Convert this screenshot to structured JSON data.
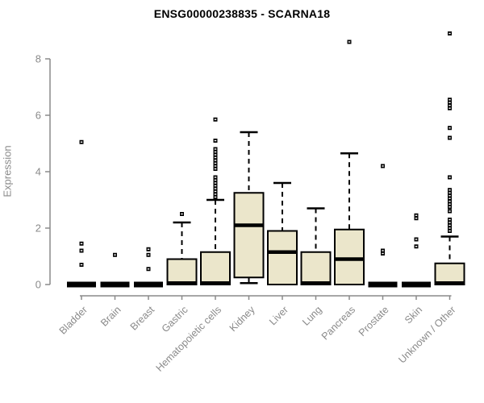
{
  "title": "ENSG00000238835 - SCARNA18",
  "chart_data": {
    "type": "boxplot",
    "title": "ENSG00000238835 - SCARNA18",
    "xlabel": "",
    "ylabel": "Expression",
    "ylim": [
      0,
      9.2
    ],
    "yticks": [
      0,
      2,
      4,
      6,
      8
    ],
    "grid": false,
    "legend": "none",
    "categories": [
      "Bladder",
      "Brain",
      "Breast",
      "Gastric",
      "Hematopoietic cells",
      "Kidney",
      "Liver",
      "Lung",
      "Pancreas",
      "Prostate",
      "Skin",
      "Unknown / Other"
    ],
    "series": [
      {
        "name": "Bladder",
        "q1": 0,
        "median": 0,
        "q3": 0,
        "whisker_low": 0,
        "whisker_high": 0,
        "outliers": [
          5.05,
          1.45,
          1.2,
          0.7
        ]
      },
      {
        "name": "Brain",
        "q1": 0,
        "median": 0,
        "q3": 0,
        "whisker_low": 0,
        "whisker_high": 0,
        "outliers": [
          1.05
        ]
      },
      {
        "name": "Breast",
        "q1": 0,
        "median": 0,
        "q3": 0,
        "whisker_low": 0,
        "whisker_high": 0,
        "outliers": [
          1.25,
          1.05,
          0.55
        ]
      },
      {
        "name": "Gastric",
        "q1": 0,
        "median": 0.05,
        "q3": 0.9,
        "whisker_low": 0,
        "whisker_high": 2.2,
        "outliers": [
          2.5
        ]
      },
      {
        "name": "Hematopoietic cells",
        "q1": 0,
        "median": 0.05,
        "q3": 1.15,
        "whisker_low": 0,
        "whisker_high": 3.0,
        "outliers": [
          5.85,
          5.1,
          4.8,
          4.7,
          4.6,
          4.5,
          4.4,
          4.3,
          4.2,
          4.1,
          3.8,
          3.7,
          3.6,
          3.5,
          3.4,
          3.3,
          3.2,
          3.1
        ]
      },
      {
        "name": "Kidney",
        "q1": 0.25,
        "median": 2.1,
        "q3": 3.25,
        "whisker_low": 0.05,
        "whisker_high": 5.4,
        "outliers": []
      },
      {
        "name": "Liver",
        "q1": 0,
        "median": 1.15,
        "q3": 1.9,
        "whisker_low": 0,
        "whisker_high": 3.6,
        "outliers": []
      },
      {
        "name": "Lung",
        "q1": 0,
        "median": 0.05,
        "q3": 1.15,
        "whisker_low": 0,
        "whisker_high": 2.7,
        "outliers": []
      },
      {
        "name": "Pancreas",
        "q1": 0,
        "median": 0.9,
        "q3": 1.95,
        "whisker_low": 0,
        "whisker_high": 4.65,
        "outliers": [
          8.6
        ]
      },
      {
        "name": "Prostate",
        "q1": 0,
        "median": 0,
        "q3": 0,
        "whisker_low": 0,
        "whisker_high": 0,
        "outliers": [
          4.2,
          1.2,
          1.1
        ]
      },
      {
        "name": "Skin",
        "q1": 0,
        "median": 0,
        "q3": 0,
        "whisker_low": 0,
        "whisker_high": 0,
        "outliers": [
          2.45,
          2.35,
          1.6,
          1.35
        ]
      },
      {
        "name": "Unknown / Other",
        "q1": 0,
        "median": 0.05,
        "q3": 0.75,
        "whisker_low": 0,
        "whisker_high": 1.7,
        "outliers": [
          8.9,
          6.55,
          6.45,
          6.35,
          6.25,
          5.55,
          5.2,
          3.8,
          3.35,
          3.25,
          3.15,
          3.05,
          2.95,
          2.85,
          2.75,
          2.6,
          2.3,
          2.2,
          2.1,
          2.0,
          1.9
        ]
      }
    ],
    "colors": {
      "box_fill": "#ebe6cb",
      "box_stroke": "#000000",
      "median": "#000000",
      "whisker": "#000000",
      "outlier": "#000000",
      "axis": "#8a8a8a",
      "tick_text": "#8a8a8a",
      "title_text": "#000000"
    }
  }
}
